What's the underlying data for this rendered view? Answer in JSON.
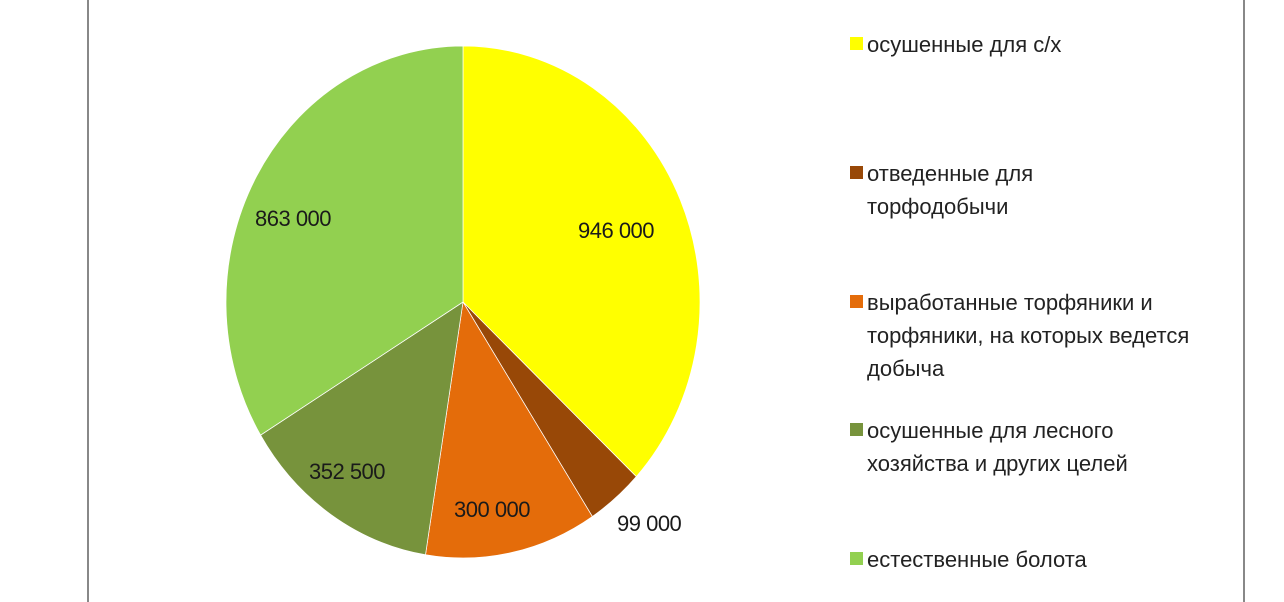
{
  "chart_data": {
    "type": "pie",
    "title": "",
    "categories": [
      "осушенные для с/х",
      "отведенные для торфодобычи",
      "выработанные торфяники и торфяники, на которых ведется добыча",
      "осушенные для лесного хозяйства и других целей",
      "естественные болота"
    ],
    "values": [
      946000,
      99000,
      300000,
      352500,
      863000
    ],
    "colors": [
      "#FFFF00",
      "#984807",
      "#E46C0A",
      "#77933C",
      "#92D050"
    ],
    "data_labels": [
      "946 000",
      "99 000",
      "300 000",
      "352 500",
      "863 000"
    ],
    "legend_position": "right",
    "start_angle_deg": 0,
    "direction": "clockwise"
  },
  "legend": {
    "items": [
      {
        "label": "осушенные для с/х",
        "color": "#FFFF00"
      },
      {
        "label": "отведенные для торфодобычи",
        "color": "#984807"
      },
      {
        "label": "выработанные торфяники и торфяники, на которых ведется добыча",
        "color": "#E46C0A"
      },
      {
        "label": "осушенные для лесного хозяйства и других целей",
        "color": "#77933C"
      },
      {
        "label": "естественные болота",
        "color": "#92D050"
      }
    ]
  },
  "labels": {
    "s0": "946 000",
    "s1": "99 000",
    "s2": "300 000",
    "s3": "352 500",
    "s4": "863 000"
  }
}
